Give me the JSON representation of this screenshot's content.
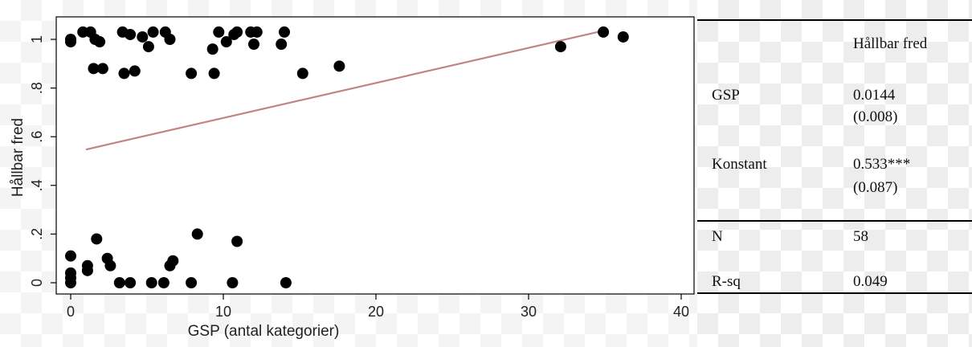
{
  "chart_data": {
    "type": "scatter",
    "xlabel": "GSP (antal kategorier)",
    "ylabel": "Hållbar fred",
    "xlim": [
      0,
      40
    ],
    "ylim": [
      0,
      1.05
    ],
    "x_ticks": [
      0,
      10,
      20,
      30,
      40
    ],
    "x_tick_labels": [
      "0",
      "10",
      "20",
      "30",
      "40"
    ],
    "y_ticks": [
      0,
      0.2,
      0.4,
      0.6,
      0.8,
      1
    ],
    "y_tick_labels": [
      "0",
      ".2",
      ".4",
      ".6",
      ".8",
      "1"
    ],
    "grid": false,
    "points": [
      {
        "x": 0,
        "y": 0.99
      },
      {
        "x": 0,
        "y": 1.0
      },
      {
        "x": 0.8,
        "y": 1.03
      },
      {
        "x": 1.3,
        "y": 1.03
      },
      {
        "x": 1.6,
        "y": 1.0
      },
      {
        "x": 1.9,
        "y": 0.99
      },
      {
        "x": 1.5,
        "y": 0.88
      },
      {
        "x": 2.1,
        "y": 0.88
      },
      {
        "x": 3.4,
        "y": 1.03
      },
      {
        "x": 3.9,
        "y": 1.02
      },
      {
        "x": 4.7,
        "y": 1.01
      },
      {
        "x": 5.1,
        "y": 0.97
      },
      {
        "x": 5.4,
        "y": 1.03
      },
      {
        "x": 6.2,
        "y": 1.03
      },
      {
        "x": 6.5,
        "y": 1.0
      },
      {
        "x": 3.5,
        "y": 0.86
      },
      {
        "x": 4.2,
        "y": 0.87
      },
      {
        "x": 7.9,
        "y": 0.86
      },
      {
        "x": 9.3,
        "y": 0.96
      },
      {
        "x": 9.7,
        "y": 1.03
      },
      {
        "x": 10.2,
        "y": 0.99
      },
      {
        "x": 10.7,
        "y": 1.02
      },
      {
        "x": 10.9,
        "y": 1.03
      },
      {
        "x": 11.8,
        "y": 1.03
      },
      {
        "x": 12.2,
        "y": 1.03
      },
      {
        "x": 12.0,
        "y": 0.98
      },
      {
        "x": 9.4,
        "y": 0.86
      },
      {
        "x": 13.8,
        "y": 0.98
      },
      {
        "x": 14.0,
        "y": 1.03
      },
      {
        "x": 15.2,
        "y": 0.86
      },
      {
        "x": 17.6,
        "y": 0.89
      },
      {
        "x": 32.1,
        "y": 0.97
      },
      {
        "x": 34.9,
        "y": 1.03
      },
      {
        "x": 36.2,
        "y": 1.01
      },
      {
        "x": 0,
        "y": 0.11
      },
      {
        "x": 0,
        "y": 0.04
      },
      {
        "x": 0,
        "y": 0.02
      },
      {
        "x": 0,
        "y": 0.0
      },
      {
        "x": 1.1,
        "y": 0.07
      },
      {
        "x": 1.1,
        "y": 0.05
      },
      {
        "x": 1.7,
        "y": 0.18
      },
      {
        "x": 2.4,
        "y": 0.1
      },
      {
        "x": 2.6,
        "y": 0.07
      },
      {
        "x": 3.2,
        "y": 0.0
      },
      {
        "x": 3.9,
        "y": 0.0
      },
      {
        "x": 5.3,
        "y": 0.0
      },
      {
        "x": 6.1,
        "y": 0.0
      },
      {
        "x": 6.5,
        "y": 0.07
      },
      {
        "x": 6.7,
        "y": 0.09
      },
      {
        "x": 7.9,
        "y": 0.0
      },
      {
        "x": 8.3,
        "y": 0.2
      },
      {
        "x": 10.6,
        "y": 0.0
      },
      {
        "x": 10.9,
        "y": 0.17
      },
      {
        "x": 14.1,
        "y": 0.0
      }
    ],
    "fit_line": {
      "x": [
        1,
        35
      ],
      "y": [
        0.5474,
        1.037
      ],
      "color": "#c08585"
    },
    "point_color": "#000000"
  },
  "table": {
    "header": "Hållbar fred",
    "rows": [
      {
        "label": "GSP",
        "value": "0.0144",
        "se": "(0.008)"
      },
      {
        "label": "Konstant",
        "value": "0.533***",
        "se": "(0.087)"
      },
      {
        "label": "N",
        "value": "58"
      },
      {
        "label": "R-sq",
        "value": "0.049"
      }
    ]
  }
}
